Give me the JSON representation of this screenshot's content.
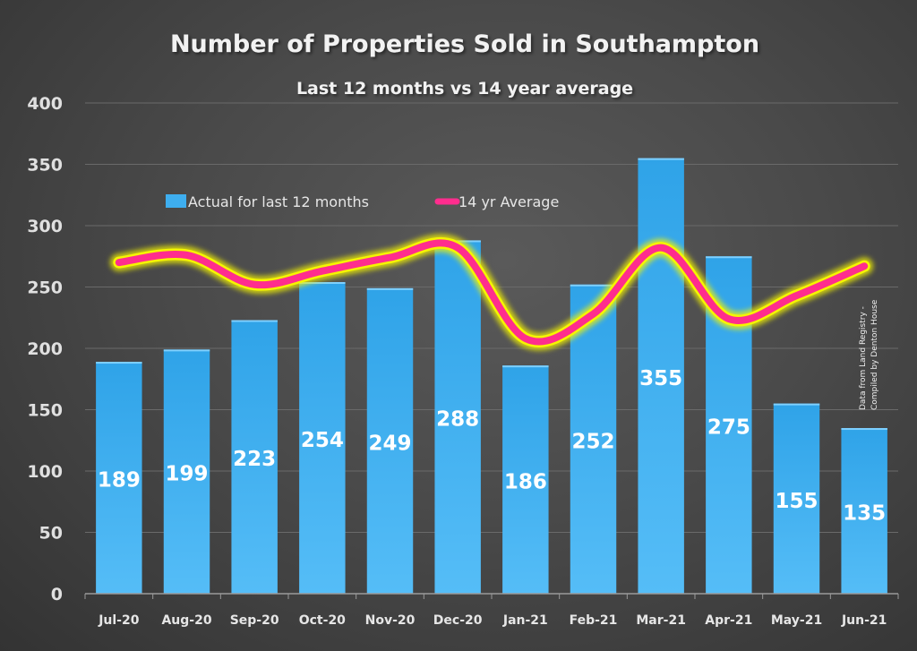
{
  "chart_data": {
    "type": "bar",
    "title": "Number of Properties Sold in Southampton",
    "subtitle": "Last 12 months vs 14 year average",
    "xlabel": "",
    "ylabel": "",
    "ylim": [
      0,
      400
    ],
    "yticks": [
      0,
      50,
      100,
      150,
      200,
      250,
      300,
      350,
      400
    ],
    "grid": true,
    "legend": "top-left",
    "categories": [
      "Jul-20",
      "Aug-20",
      "Sep-20",
      "Oct-20",
      "Nov-20",
      "Dec-20",
      "Jan-21",
      "Feb-21",
      "Mar-21",
      "Apr-21",
      "May-21",
      "Jun-21"
    ],
    "series": [
      {
        "name": "Actual for last 12 months",
        "type": "bar",
        "color": "#3eaeef",
        "values": [
          189,
          199,
          223,
          254,
          249,
          288,
          186,
          252,
          355,
          275,
          155,
          135
        ],
        "data_labels": [
          "189",
          "199",
          "223",
          "254",
          "249",
          "288",
          "186",
          "252",
          "355",
          "275",
          "155",
          "135"
        ]
      },
      {
        "name": "14 yr Average",
        "type": "line",
        "color": "#ff2d8e",
        "glow_color": "#f5f500",
        "smooth": true,
        "values": [
          270,
          276,
          252,
          263,
          274,
          282,
          208,
          228,
          282,
          224,
          243,
          267
        ]
      }
    ],
    "annotation": "Data from Land Registry - Compiled by Denton House"
  }
}
